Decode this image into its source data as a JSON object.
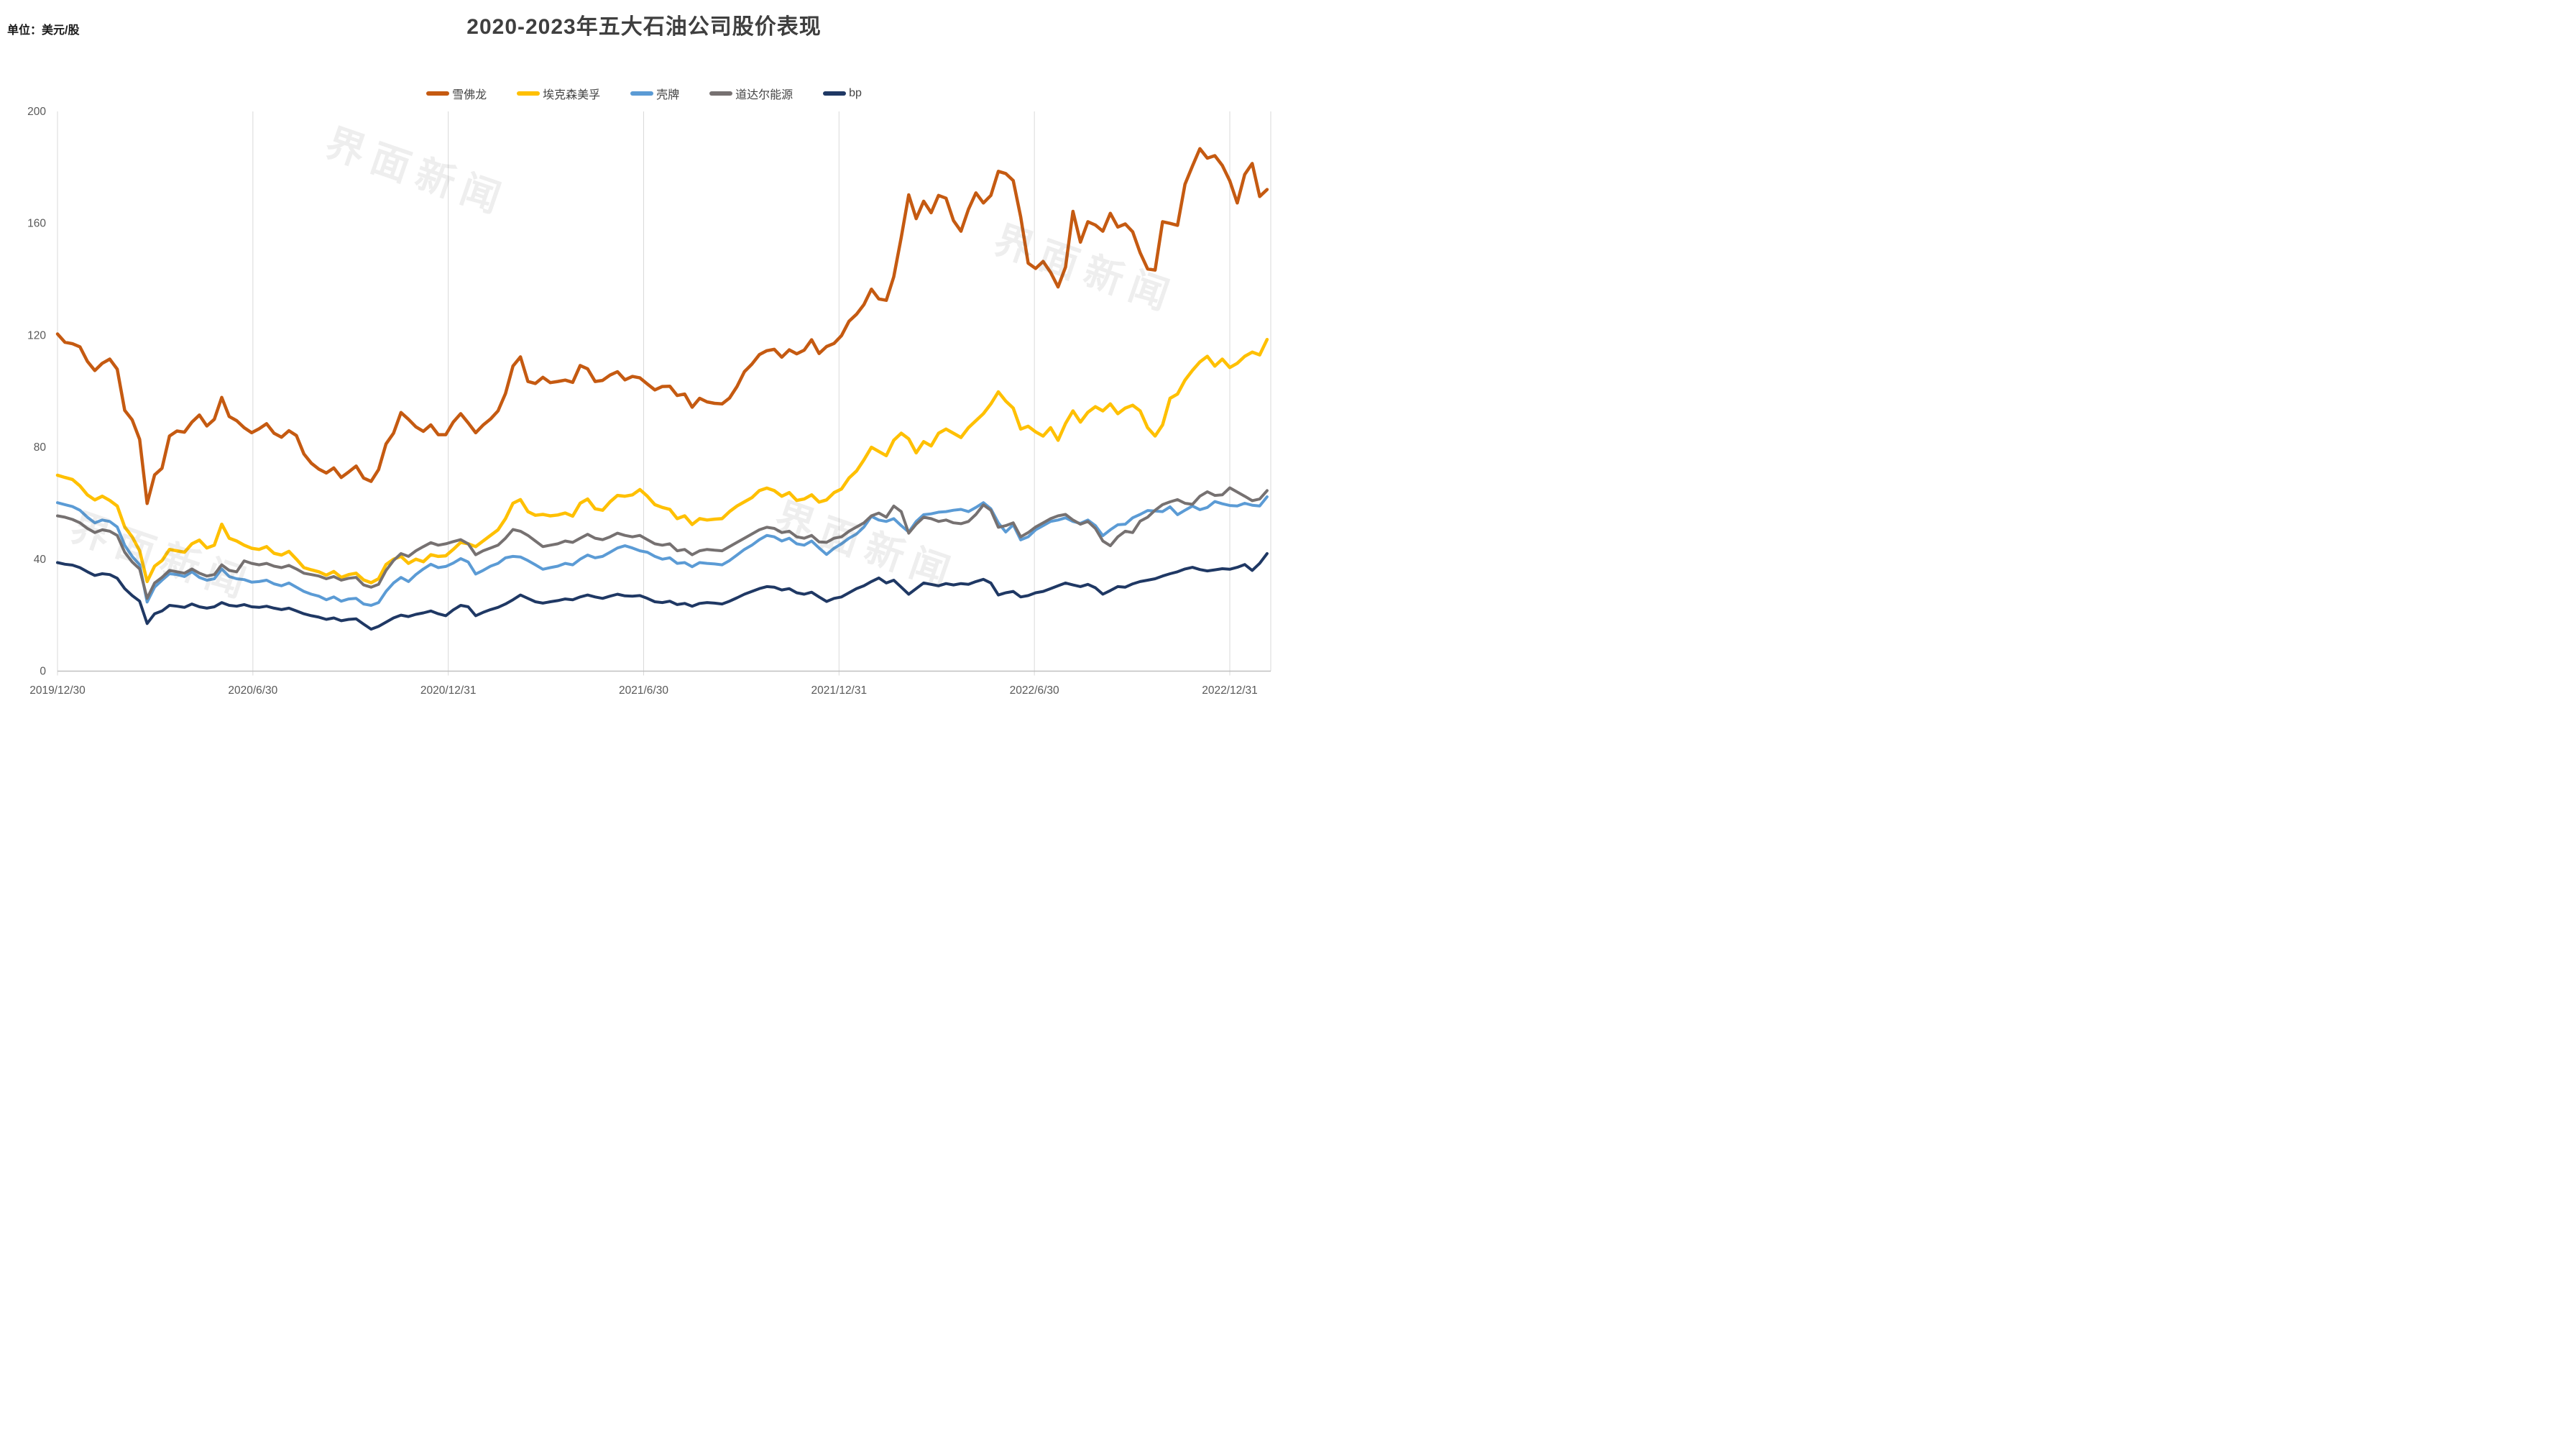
{
  "page": {
    "title": "2020-2023年五大石油公司股价表现",
    "unit_label": "单位：美元/股"
  },
  "watermark": {
    "text": "界面新闻",
    "color": "#ebebeb"
  },
  "chart_data": {
    "type": "line",
    "title": "2020-2023年五大石油公司股价表现",
    "unit": "单位：美元/股",
    "xlabel": "",
    "ylabel": "美元/股",
    "ylim": [
      0,
      200
    ],
    "y_ticks": [
      0,
      40,
      80,
      120,
      160,
      200
    ],
    "x_tick_labels": [
      "2019/12/30",
      "2020/6/30",
      "2020/12/31",
      "2021/6/30",
      "2021/12/31",
      "2022/6/30",
      "2022/12/31"
    ],
    "x_unit": "week",
    "grid": "vertical-only",
    "legend_position": "top-center",
    "axis_color": "#bfbfbf",
    "grid_color": "#d9d9d9",
    "tick_label_color": "#595959",
    "series": [
      {
        "name": "雪佛龙",
        "color": "#C55A11",
        "line_width": 4.5,
        "values": [
          120.5,
          117.5,
          117,
          115.9,
          110.7,
          107.4,
          110,
          111.5,
          107.9,
          93.2,
          89.8,
          82.8,
          59.9,
          70.1,
          72.5,
          84,
          85.8,
          85.4,
          89,
          91.5,
          87.6,
          90,
          97.8,
          91,
          89.5,
          87,
          85.2,
          86.6,
          88.4,
          85,
          83.6,
          85.9,
          84.2,
          77.6,
          74.3,
          72.2,
          70.8,
          72.6,
          69.2,
          71.2,
          73.3,
          69,
          67.8,
          72,
          81.2,
          85,
          92.4,
          90,
          87.3,
          85.7,
          88,
          84.5,
          84.5,
          89,
          92,
          88.7,
          85.2,
          87.9,
          90.1,
          93,
          99.2,
          109,
          112.3,
          103.5,
          102.8,
          105,
          103.1,
          103.5,
          104,
          103.2,
          109.2,
          108,
          103.5,
          103.9,
          105.8,
          107,
          104.1,
          105.3,
          104.8,
          102.6,
          100.5,
          101.7,
          101.8,
          98.5,
          99,
          94.3,
          97.5,
          96.2,
          95.7,
          95.5,
          97.6,
          101.7,
          107,
          109.7,
          113.1,
          114.5,
          115,
          112.2,
          114.8,
          113.4,
          114.7,
          118.4,
          113.5,
          116,
          117.1,
          119.9,
          125,
          127.5,
          131,
          136.5,
          133,
          132.5,
          140.9,
          155,
          170.2,
          161.7,
          167.9,
          163.8,
          170,
          169,
          161,
          157.2,
          165,
          170.9,
          167.3,
          170,
          178.6,
          177.8,
          175.3,
          162.3,
          145.8,
          143.9,
          146.4,
          142.5,
          137.3,
          144.4,
          164.3,
          153.3,
          160.6,
          159.4,
          157.2,
          163.6,
          158.7,
          159.8,
          157,
          149.5,
          143.7,
          143.3,
          160.6,
          160,
          159.3,
          174,
          180.5,
          186.7,
          183.3,
          184.2,
          180.7,
          175.2,
          167.3,
          177.5,
          181.4,
          169.6,
          172.1
        ]
      },
      {
        "name": "埃克森美孚",
        "color": "#FFC000",
        "line_width": 4.5,
        "values": [
          70,
          69.2,
          68.5,
          66.2,
          63,
          61.2,
          62.5,
          61,
          59,
          51.5,
          48,
          43,
          32,
          37.5,
          39.5,
          43.5,
          43,
          42.5,
          45.5,
          46.8,
          44,
          45,
          52.5,
          47.5,
          46.5,
          45,
          43.9,
          43.5,
          44.5,
          42.1,
          41.5,
          42.8,
          40,
          37,
          36.2,
          35.5,
          34.3,
          35.6,
          33.5,
          34.5,
          35,
          32.6,
          31.6,
          33,
          38.1,
          40,
          41,
          38.5,
          40,
          39.1,
          41.6,
          41,
          41.2,
          43.5,
          46,
          45.5,
          44.5,
          46.5,
          48.5,
          50.5,
          54.5,
          60,
          61.3,
          57,
          55.7,
          56,
          55.5,
          55.8,
          56.5,
          55.4,
          60,
          61.5,
          58,
          57.5,
          60.5,
          62.8,
          62.5,
          63,
          64.9,
          62.5,
          59.5,
          58.5,
          57.8,
          54.5,
          55.5,
          52.4,
          54.5,
          54,
          54.3,
          54.5,
          57,
          59,
          60.5,
          62,
          64.5,
          65.4,
          64.5,
          62.5,
          63.8,
          61,
          61.5,
          63,
          60.4,
          61.2,
          63.8,
          65.1,
          69,
          71.5,
          75.5,
          80,
          78.5,
          77,
          82.5,
          85,
          83,
          78,
          82,
          80.5,
          85,
          86.5,
          85,
          83.5,
          87,
          89.5,
          92,
          95.5,
          99.8,
          96.5,
          94,
          86.5,
          87.5,
          85.5,
          84,
          87,
          82.5,
          88.5,
          93,
          89,
          92.5,
          94.5,
          93,
          95.5,
          92,
          94,
          95,
          93,
          87,
          84,
          88,
          97.5,
          99,
          104,
          107.5,
          110.5,
          112.5,
          109,
          111.5,
          108.5,
          110,
          112.5,
          114,
          113,
          118.5
        ]
      },
      {
        "name": "壳牌",
        "color": "#5B9BD5",
        "line_width": 4,
        "values": [
          60.2,
          59.5,
          58.8,
          57.5,
          55,
          53,
          54,
          53.5,
          51.5,
          45,
          41,
          38,
          24.7,
          30,
          32.5,
          34.8,
          34.5,
          33.8,
          35.5,
          33.5,
          32.5,
          33,
          36.5,
          33.8,
          33,
          32.7,
          31.8,
          32,
          32.5,
          31.2,
          30.5,
          31.5,
          30,
          28.5,
          27.5,
          26.8,
          25.5,
          26.5,
          25,
          25.8,
          26,
          24,
          23.5,
          24.5,
          28.5,
          31.5,
          33.5,
          32,
          34.5,
          36.5,
          38.2,
          37,
          37.4,
          38.6,
          40.2,
          39,
          34.7,
          36,
          37.5,
          38.5,
          40.5,
          41,
          40.8,
          39.5,
          38,
          36.4,
          37,
          37.5,
          38.5,
          38,
          40,
          41.5,
          40.5,
          41,
          42.5,
          44,
          44.8,
          44,
          43,
          42.5,
          41,
          40,
          40.5,
          38.5,
          38.8,
          37.3,
          38.8,
          38.5,
          38.3,
          38,
          39.5,
          41.5,
          43.5,
          45,
          47,
          48.5,
          48,
          46.5,
          47.5,
          45.5,
          45,
          46.5,
          44,
          41.7,
          43.9,
          45.5,
          47.5,
          49,
          51.5,
          55.3,
          54,
          53.5,
          54.5,
          52,
          49.7,
          53.5,
          55.9,
          56.2,
          56.8,
          57,
          57.5,
          57.8,
          57,
          58.5,
          60.2,
          58,
          53,
          49.7,
          52.3,
          46.9,
          48,
          50.5,
          52,
          53.5,
          54,
          54.8,
          53.5,
          52.8,
          54,
          52,
          48.4,
          50.5,
          52.3,
          52.5,
          54.8,
          56,
          57.4,
          57.2,
          57,
          58.7,
          55.9,
          57.5,
          59,
          57.7,
          58.5,
          60.6,
          59.8,
          59.2,
          59,
          60,
          59.3,
          59,
          62.3
        ]
      },
      {
        "name": "道达尔能源",
        "color": "#767171",
        "line_width": 4,
        "values": [
          55.5,
          55,
          54.2,
          53,
          51,
          49.5,
          50.5,
          50,
          48.5,
          42.5,
          39,
          36.5,
          26,
          31.5,
          33.5,
          36,
          35.5,
          35,
          36.5,
          35,
          34,
          34.5,
          38,
          36,
          35.5,
          39.4,
          38.5,
          38,
          38.5,
          37.5,
          37,
          37.8,
          36.5,
          35,
          34.5,
          34,
          33,
          33.8,
          32.5,
          33.2,
          33.5,
          30.8,
          30,
          31,
          36,
          39.5,
          42,
          41,
          43,
          44.5,
          45.9,
          45,
          45.5,
          46.3,
          47,
          45.5,
          41.6,
          43,
          44,
          45,
          47.5,
          50.6,
          50,
          48.5,
          46.5,
          44.5,
          45,
          45.5,
          46.5,
          46,
          47.5,
          48.9,
          47.5,
          47,
          48,
          49.3,
          48.5,
          48,
          48.5,
          47,
          45.5,
          45,
          45.5,
          43,
          43.5,
          41.6,
          43,
          43.5,
          43.2,
          43,
          44.5,
          46,
          47.5,
          49,
          50.5,
          51.4,
          51,
          49.5,
          50,
          48,
          47.5,
          48.5,
          46.2,
          46,
          47.5,
          48,
          50,
          51.5,
          53,
          55.5,
          56.5,
          55,
          59,
          57,
          49.3,
          52.5,
          55,
          54.5,
          53.5,
          54,
          53,
          52.7,
          53.5,
          56,
          59.4,
          57.5,
          51.4,
          52,
          53,
          48,
          49.5,
          51.5,
          53,
          54.5,
          55.5,
          56,
          54,
          52.5,
          53.5,
          51,
          46.5,
          44.8,
          48,
          50,
          49.5,
          53.6,
          55,
          57.5,
          59.5,
          60.5,
          61.3,
          60,
          59.6,
          62.5,
          64.1,
          62.8,
          63,
          65.5,
          64,
          62.5,
          60.9,
          61.5,
          64.5
        ]
      },
      {
        "name": "bp",
        "color": "#1F3864",
        "line_width": 4,
        "values": [
          38.8,
          38.2,
          37.9,
          37,
          35.5,
          34.2,
          34.8,
          34.5,
          33.2,
          29.5,
          27,
          25,
          17,
          20.5,
          21.5,
          23.5,
          23.2,
          22.8,
          24,
          23,
          22.5,
          23,
          24.5,
          23.5,
          23.2,
          23.8,
          23,
          22.8,
          23.2,
          22.5,
          22,
          22.5,
          21.5,
          20.5,
          19.8,
          19.3,
          18.5,
          19,
          18,
          18.5,
          18.7,
          16.8,
          15,
          16,
          17.5,
          19,
          20,
          19.5,
          20.3,
          20.8,
          21.5,
          20.5,
          19.8,
          21.9,
          23.5,
          23,
          19.8,
          21,
          22,
          22.8,
          24,
          25.5,
          27.2,
          26,
          24.8,
          24.3,
          24.8,
          25.2,
          25.8,
          25.5,
          26.5,
          27.2,
          26.5,
          26,
          26.8,
          27.5,
          26.9,
          26.8,
          27,
          26,
          24.8,
          24.5,
          25,
          23.8,
          24.2,
          23.2,
          24.2,
          24.5,
          24.3,
          24,
          25,
          26.2,
          27.5,
          28.5,
          29.5,
          30.2,
          30,
          29,
          29.5,
          28,
          27.5,
          28.2,
          26.5,
          24.9,
          26,
          26.5,
          28,
          29.5,
          30.5,
          32,
          33.3,
          31.5,
          32.5,
          30,
          27.5,
          29.5,
          31.5,
          31,
          30.5,
          31.3,
          30.8,
          31.3,
          31,
          32,
          32.8,
          31.5,
          27.2,
          28,
          28.5,
          26.5,
          27,
          28,
          28.5,
          29.5,
          30.5,
          31.5,
          30.8,
          30.2,
          31,
          29.8,
          27.5,
          28.8,
          30.2,
          30,
          31.2,
          32,
          32.5,
          33,
          34,
          34.8,
          35.5,
          36.5,
          37.1,
          36.3,
          35.8,
          36.2,
          36.6,
          36.4,
          37.1,
          38.1,
          36,
          38.5,
          42
        ]
      }
    ]
  }
}
